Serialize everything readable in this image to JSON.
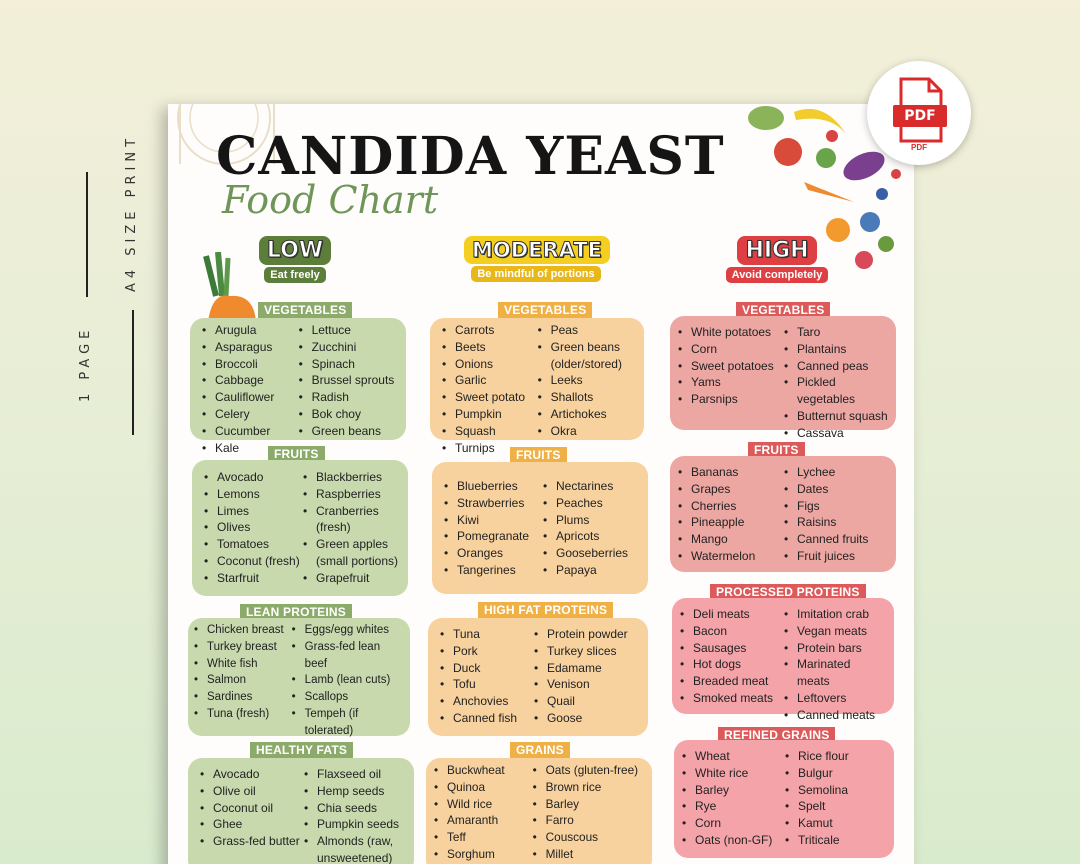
{
  "side": {
    "pages": "1 PAGE",
    "size": "A4 SIZE PRINT"
  },
  "pdf": {
    "badge": "PDF",
    "caption": "PDF"
  },
  "header": {
    "title": "CANDIDA YEAST",
    "subtitle": "Food Chart"
  },
  "levels": {
    "low": {
      "label": "LOW",
      "sub": "Eat freely",
      "color": "#5d7d3b"
    },
    "moderate": {
      "label": "MODERATE",
      "sub": "Be mindful of portions",
      "color": "#f5cf1f"
    },
    "high": {
      "label": "HIGH",
      "sub": "Avoid completely",
      "color": "#dd3f42"
    }
  },
  "low": {
    "vegetables": {
      "label": "VEGETABLES",
      "col1": [
        "Arugula",
        "Asparagus",
        "Broccoli",
        "Cabbage",
        "Cauliflower",
        "Celery",
        "Cucumber",
        "Kale"
      ],
      "col2": [
        "Lettuce",
        "Zucchini",
        "Spinach",
        "Brussel sprouts",
        "Radish",
        "Bok choy",
        "Green beans"
      ]
    },
    "fruits": {
      "label": "FRUITS",
      "col1": [
        "Avocado",
        "Lemons",
        "Limes",
        "Olives",
        "Tomatoes",
        "Coconut (fresh)",
        "Starfruit"
      ],
      "col2": [
        "Blackberries",
        "Raspberries",
        "Cranberries (fresh)",
        "Green apples (small portions)",
        "Grapefruit"
      ]
    },
    "proteins": {
      "label": "LEAN PROTEINS",
      "col1": [
        "Chicken breast",
        "Turkey breast",
        "White fish",
        "Salmon",
        "Sardines",
        "Tuna (fresh)"
      ],
      "col2": [
        "Eggs/egg whites",
        "Grass-fed lean beef",
        "Lamb (lean cuts)",
        "Scallops",
        "Tempeh (if tolerated)"
      ]
    },
    "fats": {
      "label": "HEALTHY FATS",
      "col1": [
        "Avocado",
        "Olive oil",
        "Coconut oil",
        "Ghee",
        "Grass-fed butter"
      ],
      "col2": [
        "Flaxseed oil",
        "Hemp seeds",
        "Chia seeds",
        "Pumpkin seeds",
        "Almonds (raw, unsweetened)"
      ]
    }
  },
  "moderate": {
    "vegetables": {
      "label": "VEGETABLES",
      "col1": [
        "Carrots",
        "Beets",
        "Onions",
        "Garlic",
        "Sweet potato",
        "Pumpkin",
        "Squash",
        "Turnips"
      ],
      "col2": [
        "Peas",
        "Green beans (older/stored)",
        "Leeks",
        "Shallots",
        "Artichokes",
        "Okra"
      ]
    },
    "fruits": {
      "label": "FRUITS",
      "col1": [
        "Blueberries",
        "Strawberries",
        "Kiwi",
        "Pomegranate",
        "Oranges",
        "Tangerines"
      ],
      "col2": [
        "Nectarines",
        "Peaches",
        "Plums",
        "Apricots",
        "Gooseberries",
        "Papaya"
      ]
    },
    "proteins": {
      "label": "HIGH FAT PROTEINS",
      "col1": [
        "Tuna",
        "Pork",
        "Duck",
        "Tofu",
        "Anchovies",
        "Canned fish"
      ],
      "col2": [
        "Protein powder",
        "Turkey slices",
        "Edamame",
        "Venison",
        "Quail",
        "Goose"
      ]
    },
    "grains": {
      "label": "GRAINS",
      "col1": [
        "Buckwheat",
        "Quinoa",
        "Wild rice",
        "Amaranth",
        "Teff",
        "Sorghum"
      ],
      "col2": [
        "Oats (gluten-free)",
        "Brown rice",
        "Barley",
        "Farro",
        "Couscous",
        "Millet"
      ]
    }
  },
  "high": {
    "vegetables": {
      "label": "VEGETABLES",
      "col1": [
        "White potatoes",
        "Corn",
        "Sweet potatoes",
        "Yams",
        "Parsnips"
      ],
      "col2": [
        "Taro",
        "Plantains",
        "Canned peas",
        "Pickled vegetables",
        "Butternut squash",
        "Cassava"
      ]
    },
    "fruits": {
      "label": "FRUITS",
      "col1": [
        "Bananas",
        "Grapes",
        "Cherries",
        "Pineapple",
        "Mango",
        "Watermelon"
      ],
      "col2": [
        "Lychee",
        "Dates",
        "Figs",
        "Raisins",
        "Canned fruits",
        "Fruit juices"
      ]
    },
    "proteins": {
      "label": "PROCESSED PROTEINS",
      "col1": [
        "Deli meats",
        "Bacon",
        "Sausages",
        "Hot dogs",
        "Breaded meat",
        "Smoked meats"
      ],
      "col2": [
        "Imitation crab",
        "Vegan meats",
        "Protein bars",
        "Marinated meats",
        "Leftovers",
        "Canned meats"
      ]
    },
    "grains": {
      "label": "REFINED GRAINS",
      "col1": [
        "Wheat",
        "White rice",
        "Barley",
        "Rye",
        "Corn",
        "Oats (non-GF)"
      ],
      "col2": [
        "Rice flour",
        "Bulgur",
        "Semolina",
        "Spelt",
        "Kamut",
        "Triticale"
      ]
    }
  }
}
